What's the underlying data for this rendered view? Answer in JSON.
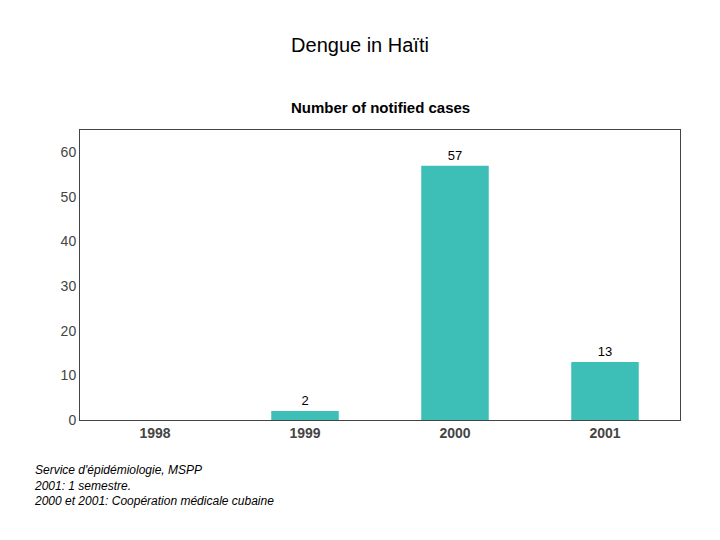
{
  "chart_data": {
    "type": "bar",
    "title": "Dengue in Haïti",
    "subtitle": "Number of notified cases",
    "categories": [
      "1998",
      "1999",
      "2000",
      "2001"
    ],
    "values": [
      0,
      2,
      57,
      13
    ],
    "value_labels": [
      null,
      "2",
      "57",
      "13"
    ],
    "color": "#3dbfb8",
    "ylim": [
      0,
      65
    ],
    "yticks": [
      0,
      10,
      20,
      30,
      40,
      50,
      60
    ],
    "grid": false,
    "annotations": [
      "Service d'épidémiologie, MSPP",
      "2001: 1 semestre.",
      "2000 et 2001: Coopération médicale cubaine"
    ]
  }
}
